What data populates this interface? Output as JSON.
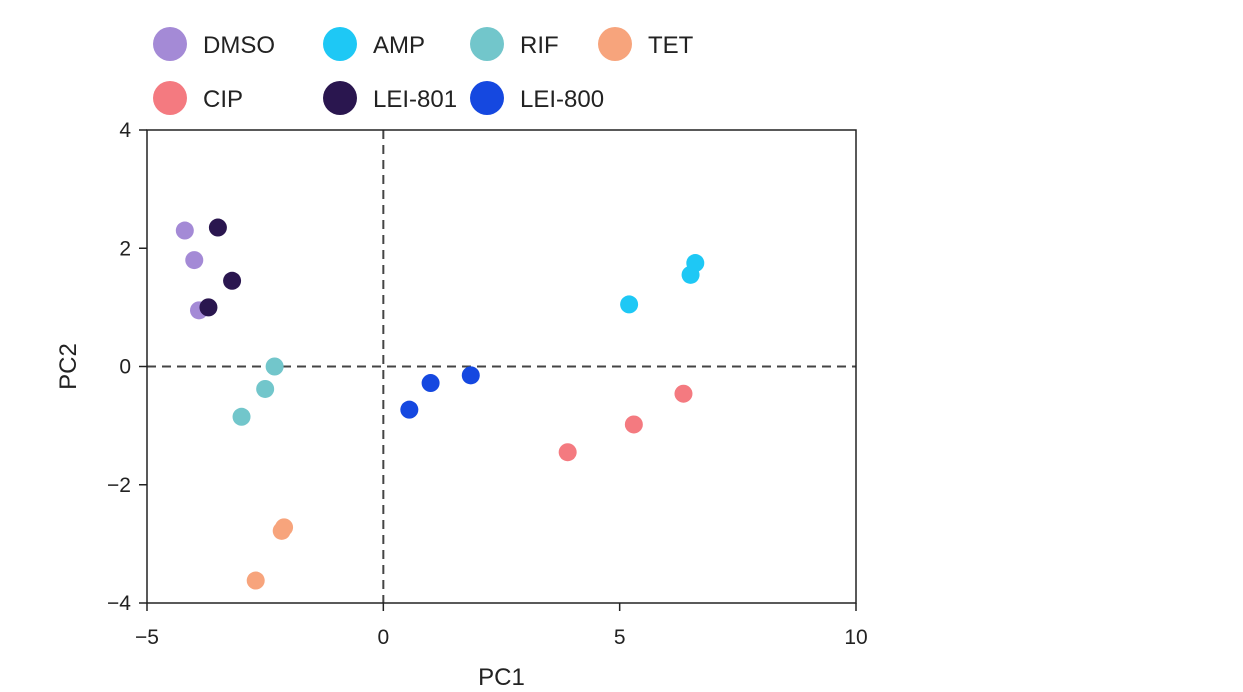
{
  "chart_data": {
    "type": "scatter",
    "title": "",
    "xlabel": "PC1",
    "ylabel": "PC2",
    "xlim": [
      -5,
      10
    ],
    "ylim": [
      -4,
      4
    ],
    "xticks": [
      -5,
      0,
      5,
      10
    ],
    "yticks": [
      -4,
      -2,
      0,
      2,
      4
    ],
    "xtick_labels": [
      "−5",
      "0",
      "5",
      "10"
    ],
    "ytick_labels": [
      "−4",
      "−2",
      "0",
      "2",
      "4"
    ],
    "reference_lines": {
      "x": 0,
      "y": 0,
      "style": "dashed"
    },
    "legend_position": "top",
    "series": [
      {
        "name": "DMSO",
        "color": "#a48ad6",
        "points": [
          [
            -4.2,
            2.3
          ],
          [
            -4.0,
            1.8
          ],
          [
            -3.9,
            0.95
          ]
        ]
      },
      {
        "name": "AMP",
        "color": "#1ec8f5",
        "points": [
          [
            5.2,
            1.05
          ],
          [
            6.5,
            1.55
          ],
          [
            6.6,
            1.75
          ]
        ]
      },
      {
        "name": "RIF",
        "color": "#72c6cb",
        "points": [
          [
            -2.3,
            0.0
          ],
          [
            -2.5,
            -0.38
          ],
          [
            -3.0,
            -0.85
          ]
        ]
      },
      {
        "name": "TET",
        "color": "#f7a47c",
        "points": [
          [
            -2.1,
            -2.72
          ],
          [
            -2.15,
            -2.78
          ],
          [
            -2.7,
            -3.62
          ]
        ]
      },
      {
        "name": "CIP",
        "color": "#f47a80",
        "points": [
          [
            3.9,
            -1.45
          ],
          [
            5.3,
            -0.98
          ],
          [
            6.35,
            -0.46
          ]
        ]
      },
      {
        "name": "LEI-801",
        "color": "#2a164f",
        "points": [
          [
            -3.5,
            2.35
          ],
          [
            -3.2,
            1.45
          ],
          [
            -3.7,
            1.0
          ]
        ]
      },
      {
        "name": "LEI-800",
        "color": "#1548e0",
        "points": [
          [
            0.55,
            -0.73
          ],
          [
            1.0,
            -0.28
          ],
          [
            1.85,
            -0.15
          ]
        ]
      }
    ]
  }
}
